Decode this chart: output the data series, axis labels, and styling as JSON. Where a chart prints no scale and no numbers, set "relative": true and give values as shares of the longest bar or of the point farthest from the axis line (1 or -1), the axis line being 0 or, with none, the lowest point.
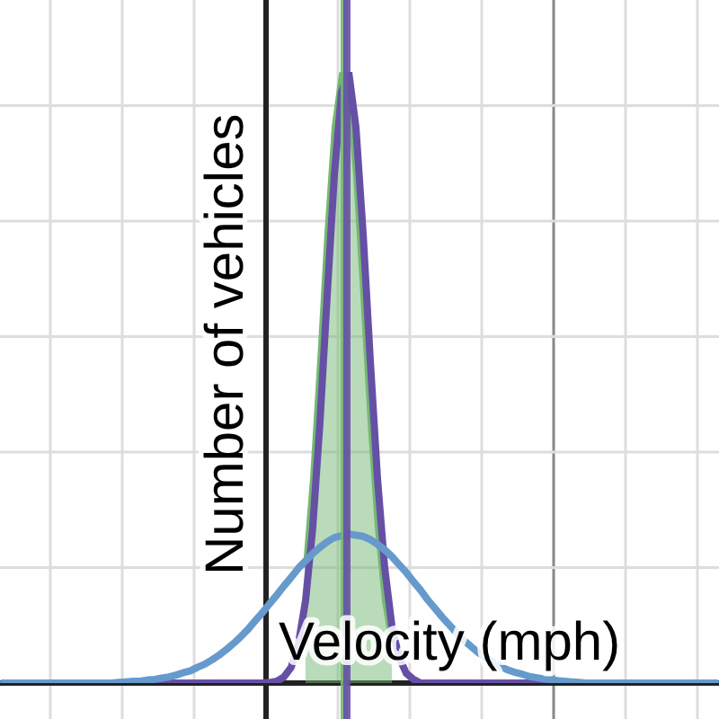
{
  "chart_data": {
    "type": "line",
    "relative": true,
    "grid": true,
    "xlabel": "Velocity (mph)",
    "ylabel": "Number of vehicles",
    "categories": [
      null,
      null,
      null,
      null,
      null,
      null,
      null,
      null,
      null,
      null,
      null,
      null,
      null,
      null,
      null,
      null,
      null,
      null,
      null,
      null,
      null,
      null,
      null,
      null,
      null,
      null,
      null,
      null,
      null,
      null,
      null,
      null,
      null,
      null,
      null,
      null,
      null,
      null,
      null,
      null,
      null,
      null,
      null,
      null,
      null,
      null,
      null,
      null,
      null,
      null,
      null,
      null,
      null,
      null,
      null,
      null,
      null,
      null,
      null,
      null,
      null,
      null,
      null,
      null,
      null,
      null,
      null,
      null,
      null,
      null,
      null,
      null,
      null,
      null,
      null,
      null,
      null,
      null,
      null,
      null,
      null,
      null,
      null,
      null,
      null,
      null,
      null,
      null,
      null,
      null,
      null,
      null,
      null,
      null,
      null,
      null,
      null,
      null,
      null,
      null
    ],
    "series": [
      {
        "color": "#6699cc",
        "values": [
          0,
          0,
          0,
          0,
          0,
          0,
          0,
          0,
          0,
          0,
          0,
          0,
          0,
          0,
          0,
          0,
          0.001,
          0.002,
          0.003,
          0.003,
          0.005,
          0.006,
          0.008,
          0.01,
          0.013,
          0.017,
          0.02,
          0.026,
          0.031,
          0.038,
          0.046,
          0.055,
          0.065,
          0.076,
          0.088,
          0.102,
          0.115,
          0.13,
          0.144,
          0.159,
          0.173,
          0.188,
          0.2,
          0.212,
          0.222,
          0.231,
          0.238,
          0.241,
          0.244,
          0.242,
          0.24,
          0.235,
          0.227,
          0.218,
          0.207,
          0.194,
          0.181,
          0.166,
          0.152,
          0.136,
          0.122,
          0.108,
          0.095,
          0.082,
          0.07,
          0.06,
          0.05,
          0.042,
          0.035,
          0.028,
          0.022,
          0.018,
          0.015,
          0.011,
          0.009,
          0.007,
          0.006,
          0.004,
          0.003,
          0.002,
          0.001,
          0,
          0,
          0,
          0,
          0,
          0,
          0,
          0,
          0,
          0,
          0,
          0,
          0,
          0,
          0,
          0,
          0,
          0,
          0
        ]
      },
      {
        "type": "area",
        "color": "#74b874",
        "values": [
          null,
          null,
          null,
          null,
          null,
          null,
          null,
          null,
          null,
          null,
          null,
          null,
          null,
          null,
          null,
          null,
          null,
          null,
          null,
          null,
          null,
          null,
          null,
          null,
          null,
          null,
          null,
          null,
          null,
          null,
          null,
          null,
          null,
          null,
          null,
          null,
          null,
          null,
          null,
          null,
          null,
          null,
          0.189,
          0.335,
          0.528,
          0.736,
          0.91,
          0.996,
          0.967,
          0.831,
          0.633,
          0.427,
          0.255,
          0.135,
          0.064,
          null,
          null,
          null,
          null,
          null,
          null,
          null,
          null,
          null,
          null,
          null,
          null,
          null,
          null,
          null,
          null,
          null,
          null,
          null,
          null,
          null,
          null,
          null,
          null,
          null,
          null,
          null,
          null,
          null,
          null,
          null,
          null,
          null,
          null,
          null,
          null,
          null,
          null,
          null,
          null,
          null,
          null,
          null,
          null,
          null
        ]
      },
      {
        "color": "#6650a6",
        "values": [
          0,
          0,
          0,
          0,
          0,
          0,
          0,
          0,
          0,
          0,
          0,
          0,
          0,
          0,
          0,
          0,
          0,
          0,
          0,
          0,
          0,
          0,
          0,
          0,
          0,
          0,
          0,
          0,
          0,
          0,
          0,
          0,
          0,
          0,
          0,
          0,
          0,
          0.001,
          0.003,
          0.01,
          0.026,
          0.064,
          0.135,
          0.255,
          0.427,
          0.633,
          0.831,
          0.967,
          1,
          0.91,
          0.736,
          0.528,
          0.335,
          0.189,
          0.094,
          0.042,
          0.016,
          0.006,
          0,
          0,
          0,
          0,
          0,
          0,
          0,
          0,
          0,
          0,
          0,
          0,
          0,
          0,
          0,
          0,
          0,
          0,
          0,
          0,
          0,
          0,
          0,
          0,
          0,
          0,
          0,
          0,
          0,
          0,
          0,
          0,
          0,
          0,
          0,
          0,
          0,
          0,
          0,
          0,
          0,
          0
        ]
      }
    ]
  }
}
